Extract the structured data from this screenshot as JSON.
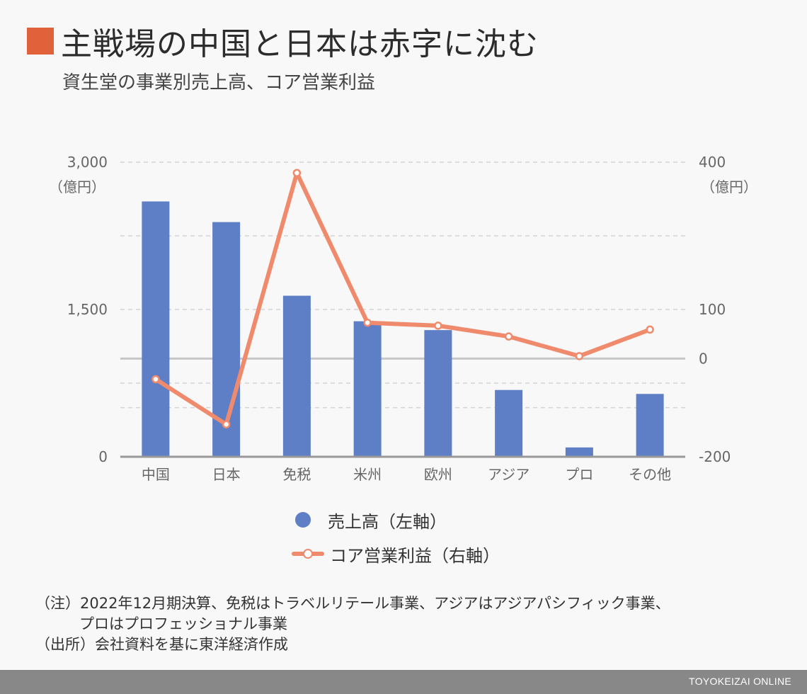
{
  "title": "主戦場の中国と日本は赤字に沈む",
  "subtitle": "資生堂の事業別売上高、コア営業利益",
  "accent_color": "#e0613a",
  "chart_data": {
    "type": "bar+line",
    "categories": [
      "中国",
      "日本",
      "免税",
      "米州",
      "欧州",
      "アジア",
      "プロ",
      "その他"
    ],
    "series": [
      {
        "name": "売上高（左軸）",
        "type": "bar",
        "axis": "left",
        "color": "#5e7ec6",
        "values": [
          2600,
          2390,
          1640,
          1380,
          1290,
          680,
          95,
          640
        ]
      },
      {
        "name": "コア営業利益（右軸）",
        "type": "line",
        "axis": "right",
        "color": "#ef8a6c",
        "values": [
          -42,
          -134,
          378,
          73,
          67,
          45,
          5,
          59
        ]
      }
    ],
    "left_axis": {
      "ylim": [
        0,
        3000
      ],
      "ticks": [
        0,
        1500,
        3000
      ],
      "tick_labels": [
        "0",
        "1,500",
        "3,000"
      ],
      "unit": "（億円）"
    },
    "right_axis": {
      "ylim": [
        -200,
        400
      ],
      "ticks": [
        -200,
        0,
        100,
        400
      ],
      "tick_labels": [
        "-200",
        "0",
        "100",
        "400"
      ],
      "unit": "（億円）"
    },
    "grid": true
  },
  "legend": {
    "bar_label": "売上高（左軸）",
    "line_label": "コア営業利益（右軸）"
  },
  "notes": {
    "line1": "（注）2022年12月期決算、免税はトラベルリテール事業、アジアはアジアパシフィック事業、",
    "line2": "プロはプロフェッショナル事業",
    "line3": "（出所）会社資料を基に東洋経済作成"
  },
  "footer": "TOYOKEIZAI ONLINE"
}
